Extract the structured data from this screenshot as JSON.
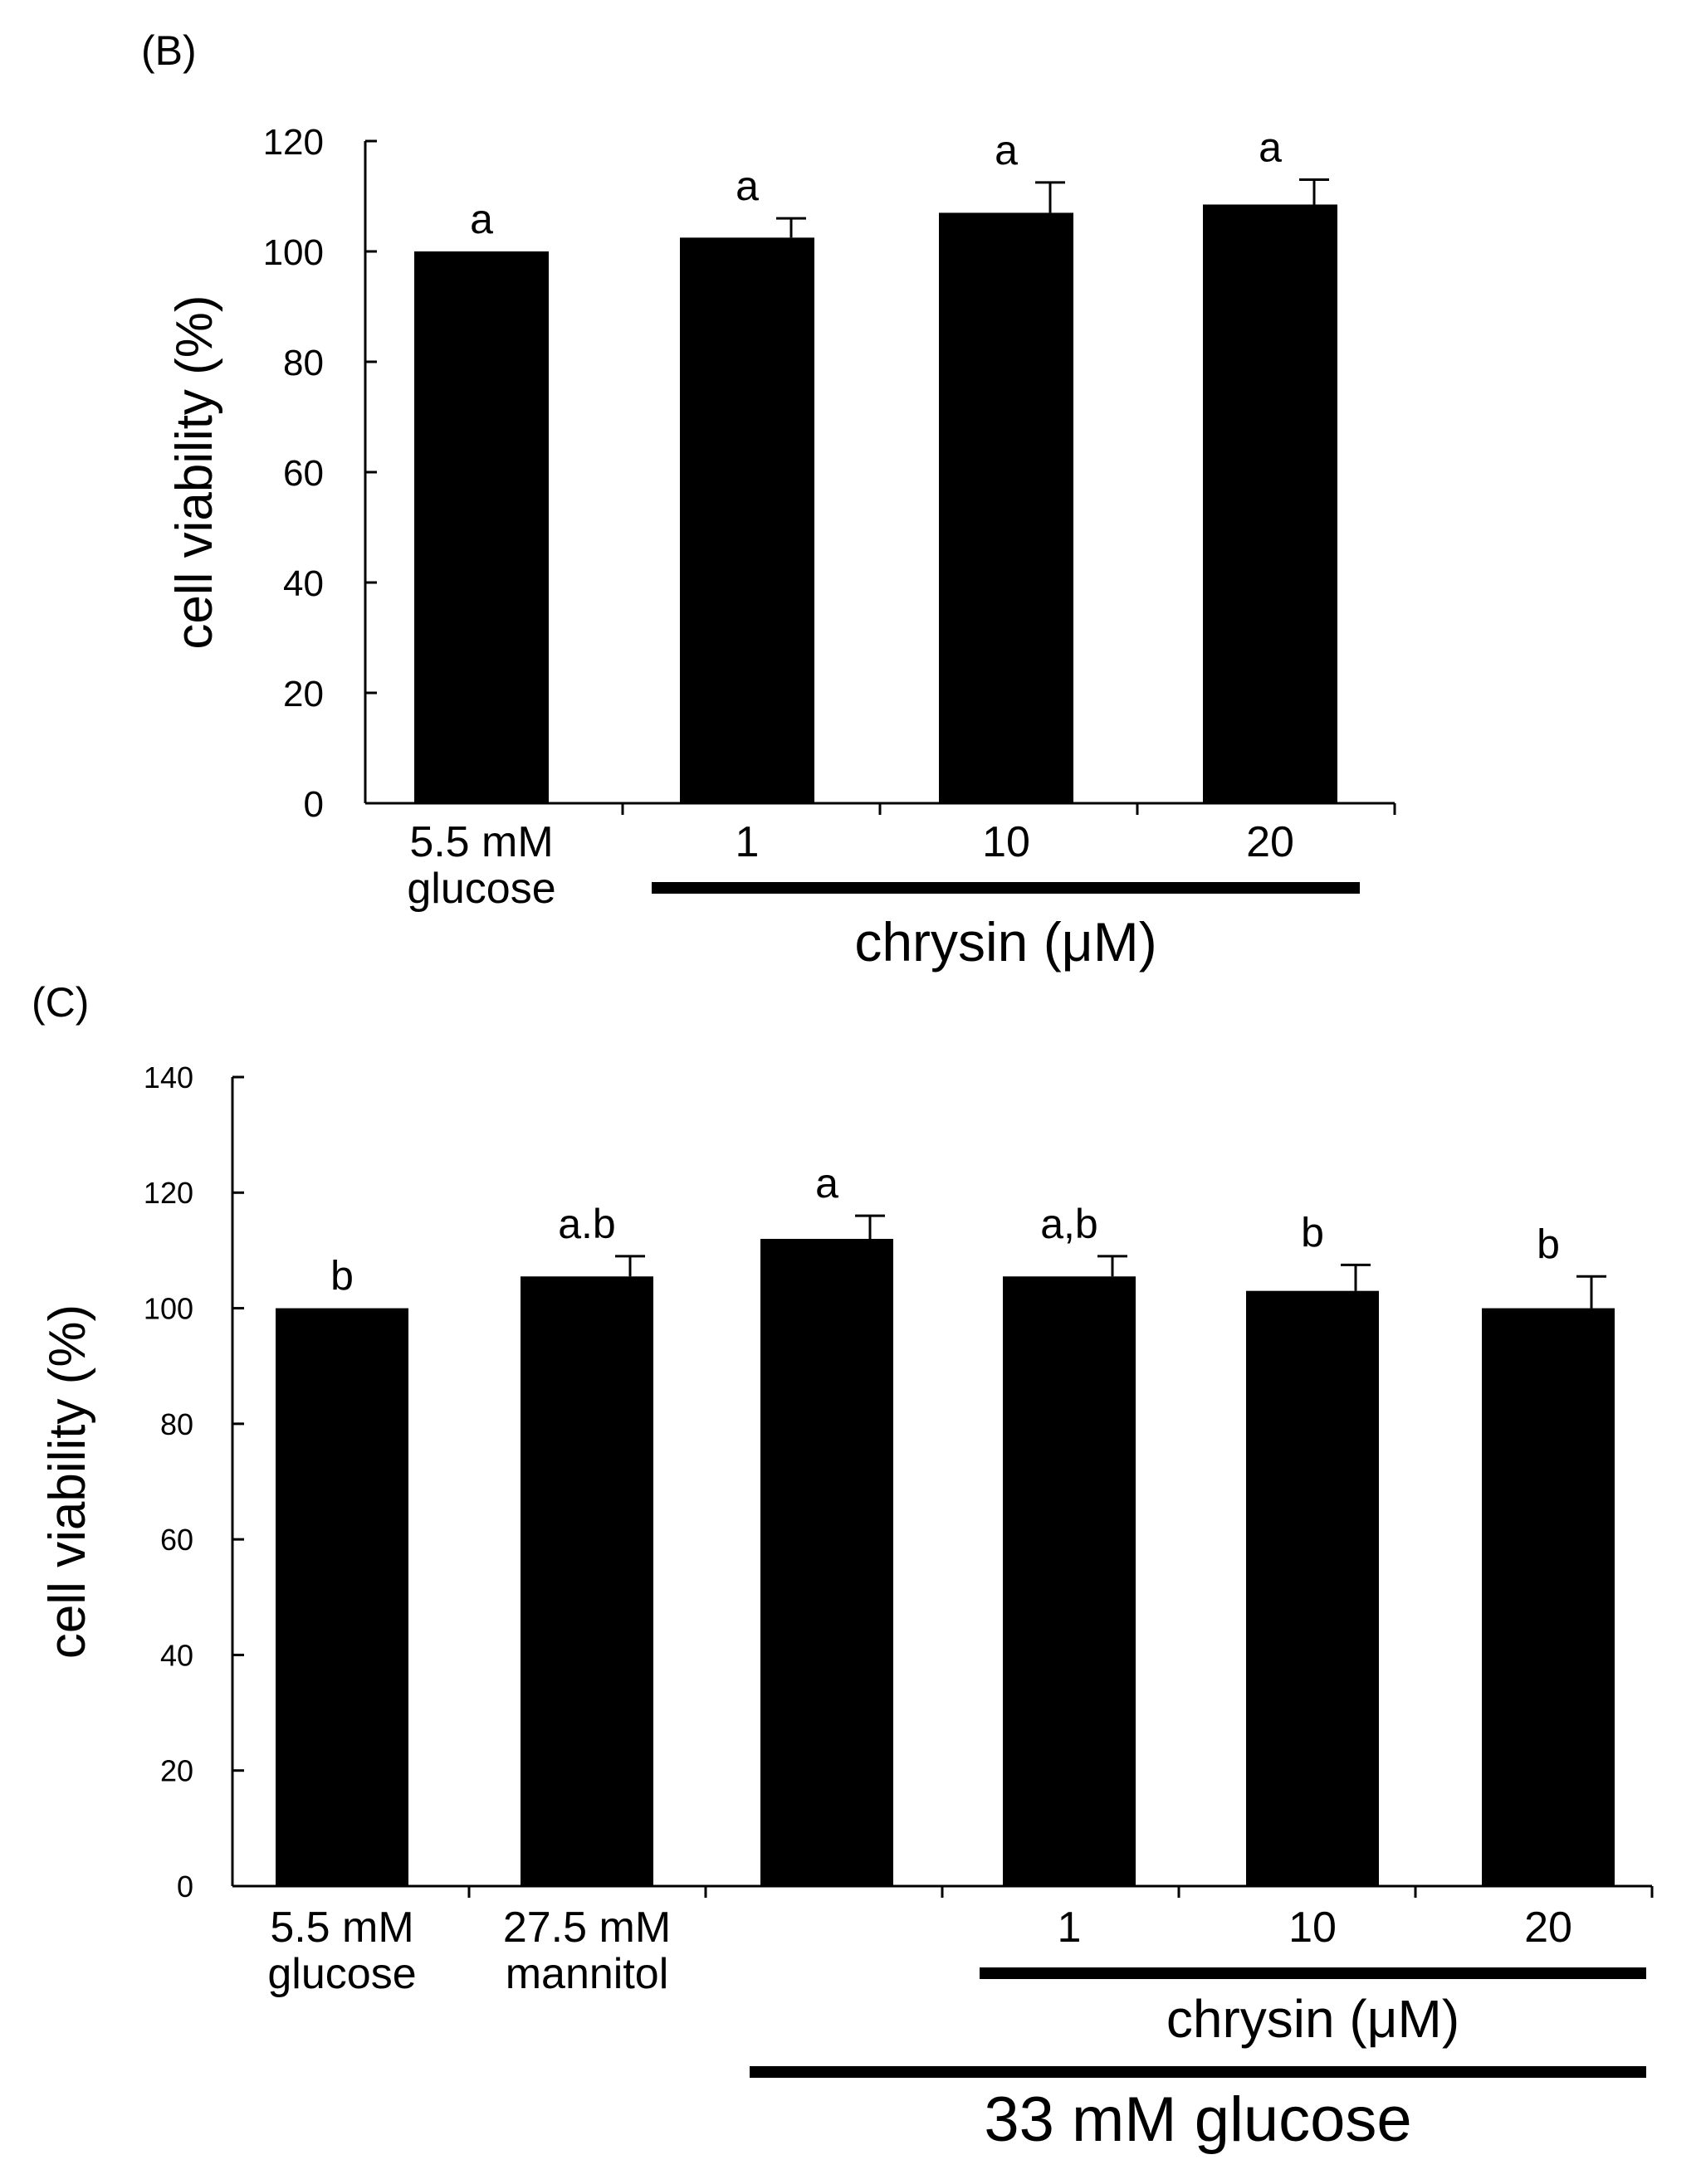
{
  "chart_data": [
    {
      "type": "bar",
      "panel_label": "(B)",
      "ylabel": "cell viability (%)",
      "ylim": [
        0,
        120
      ],
      "yticks": [
        "0",
        "20",
        "40",
        "60",
        "80",
        "100",
        "120"
      ],
      "categories": [
        {
          "label_lines": [
            "5.5 mM",
            "glucose"
          ]
        },
        {
          "label_lines": [
            "1"
          ]
        },
        {
          "label_lines": [
            "10"
          ]
        },
        {
          "label_lines": [
            "20"
          ]
        }
      ],
      "values": [
        100,
        102.5,
        107,
        108.5
      ],
      "errors": [
        0,
        3.5,
        5.5,
        4.5
      ],
      "significance": [
        "a",
        "a",
        "a",
        "a"
      ],
      "bar_color": "#000000",
      "group_brackets": [
        {
          "label": "chrysin (μM)",
          "from": 1,
          "to": 3
        }
      ]
    },
    {
      "type": "bar",
      "panel_label": "(C)",
      "ylabel": "cell viability (%)",
      "ylim": [
        0,
        140
      ],
      "yticks": [
        "0",
        "20",
        "40",
        "60",
        "80",
        "100",
        "120",
        "140"
      ],
      "categories": [
        {
          "label_lines": [
            "5.5 mM",
            "glucose"
          ]
        },
        {
          "label_lines": [
            "27.5 mM",
            "mannitol"
          ]
        },
        {
          "label_lines": []
        },
        {
          "label_lines": [
            "1"
          ]
        },
        {
          "label_lines": [
            "10"
          ]
        },
        {
          "label_lines": [
            "20"
          ]
        }
      ],
      "values": [
        100,
        105.5,
        112,
        105.5,
        103,
        100
      ],
      "errors": [
        0,
        3.5,
        4,
        3.5,
        4.5,
        5.5
      ],
      "significance": [
        "b",
        "a.b",
        "a",
        "a,b",
        "b",
        "b"
      ],
      "bar_color": "#000000",
      "group_brackets": [
        {
          "label": "chrysin (μM)",
          "from": 3,
          "to": 5
        },
        {
          "label": "33 mM glucose",
          "from": 2,
          "to": 5
        }
      ]
    }
  ]
}
